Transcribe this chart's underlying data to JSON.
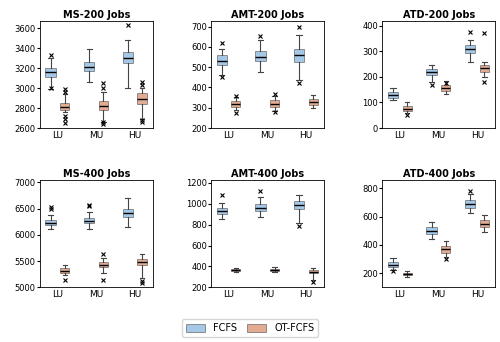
{
  "titles": [
    "MS-200 Jobs",
    "AMT-200 Jobs",
    "ATD-200 Jobs",
    "MS-400 Jobs",
    "AMT-400 Jobs",
    "ATD-400 Jobs"
  ],
  "categories": [
    "LU",
    "MU",
    "HU"
  ],
  "fcfs_color": "#5B9BD5",
  "otfcfs_color": "#CD6839",
  "plots": [
    {
      "title": "MS-200 Jobs",
      "ylim": [
        2600,
        3680
      ],
      "yticks": [
        2600,
        2800,
        3000,
        3200,
        3400,
        3600
      ],
      "fcfs": {
        "LU": {
          "whislo": 2995,
          "q1": 3110,
          "med": 3160,
          "q3": 3205,
          "whishi": 3305,
          "fliers": [
            3000,
            3330
          ]
        },
        "MU": {
          "whislo": 3060,
          "q1": 3175,
          "med": 3215,
          "q3": 3265,
          "whishi": 3390,
          "fliers": []
        },
        "HU": {
          "whislo": 3005,
          "q1": 3250,
          "med": 3300,
          "q3": 3360,
          "whishi": 3480,
          "fliers": [
            3640
          ]
        }
      },
      "otfcfs": {
        "LU": {
          "whislo": 2760,
          "q1": 2780,
          "med": 2810,
          "q3": 2855,
          "whishi": 2940,
          "fliers": [
            2650,
            2690,
            2720,
            2960,
            2990
          ]
        },
        "MU": {
          "whislo": 2660,
          "q1": 2785,
          "med": 2820,
          "q3": 2870,
          "whishi": 2960,
          "fliers": [
            2640,
            2660,
            3000,
            3050
          ]
        },
        "HU": {
          "whislo": 2690,
          "q1": 2845,
          "med": 2890,
          "q3": 2950,
          "whishi": 3000,
          "fliers": [
            2660,
            2680,
            3030,
            3060
          ]
        }
      }
    },
    {
      "title": "AMT-200 Jobs",
      "ylim": [
        200,
        730
      ],
      "yticks": [
        200,
        300,
        400,
        500,
        600,
        700
      ],
      "fcfs": {
        "LU": {
          "whislo": 460,
          "q1": 510,
          "med": 533,
          "q3": 560,
          "whishi": 590,
          "fliers": [
            450,
            620
          ]
        },
        "MU": {
          "whislo": 475,
          "q1": 530,
          "med": 550,
          "q3": 578,
          "whishi": 635,
          "fliers": [
            655
          ]
        },
        "HU": {
          "whislo": 435,
          "q1": 528,
          "med": 560,
          "q3": 588,
          "whishi": 660,
          "fliers": [
            420,
            700
          ]
        }
      },
      "otfcfs": {
        "LU": {
          "whislo": 290,
          "q1": 305,
          "med": 318,
          "q3": 332,
          "whishi": 355,
          "fliers": [
            275,
            360
          ]
        },
        "MU": {
          "whislo": 285,
          "q1": 305,
          "med": 320,
          "q3": 337,
          "whishi": 360,
          "fliers": [
            280,
            368
          ]
        },
        "HU": {
          "whislo": 298,
          "q1": 315,
          "med": 328,
          "q3": 345,
          "whishi": 365,
          "fliers": []
        }
      }
    },
    {
      "title": "ATD-200 Jobs",
      "ylim": [
        0,
        420
      ],
      "yticks": [
        0,
        100,
        200,
        300,
        400
      ],
      "fcfs": {
        "LU": {
          "whislo": 108,
          "q1": 118,
          "med": 128,
          "q3": 140,
          "whishi": 155,
          "fliers": []
        },
        "MU": {
          "whislo": 178,
          "q1": 207,
          "med": 218,
          "q3": 230,
          "whishi": 248,
          "fliers": [
            170
          ]
        },
        "HU": {
          "whislo": 258,
          "q1": 295,
          "med": 308,
          "q3": 325,
          "whishi": 345,
          "fliers": [
            375
          ]
        }
      },
      "otfcfs": {
        "LU": {
          "whislo": 58,
          "q1": 68,
          "med": 76,
          "q3": 85,
          "whishi": 100,
          "fliers": [
            50
          ]
        },
        "MU": {
          "whislo": 133,
          "q1": 145,
          "med": 155,
          "q3": 168,
          "whishi": 185,
          "fliers": [
            175
          ]
        },
        "HU": {
          "whislo": 200,
          "q1": 220,
          "med": 233,
          "q3": 245,
          "whishi": 258,
          "fliers": [
            180,
            370
          ]
        }
      }
    },
    {
      "title": "MS-400 Jobs",
      "ylim": [
        5000,
        7050
      ],
      "yticks": [
        5000,
        5500,
        6000,
        6500,
        7000
      ],
      "fcfs": {
        "LU": {
          "whislo": 6105,
          "q1": 6178,
          "med": 6218,
          "q3": 6278,
          "whishi": 6385,
          "fliers": [
            6490,
            6535
          ]
        },
        "MU": {
          "whislo": 6120,
          "q1": 6228,
          "med": 6265,
          "q3": 6320,
          "whishi": 6430,
          "fliers": [
            6545,
            6575
          ]
        },
        "HU": {
          "whislo": 6158,
          "q1": 6340,
          "med": 6408,
          "q3": 6490,
          "whishi": 6700,
          "fliers": []
        }
      },
      "otfcfs": {
        "LU": {
          "whislo": 5230,
          "q1": 5280,
          "med": 5318,
          "q3": 5360,
          "whishi": 5430,
          "fliers": [
            5130
          ]
        },
        "MU": {
          "whislo": 5265,
          "q1": 5388,
          "med": 5430,
          "q3": 5480,
          "whishi": 5555,
          "fliers": [
            5130,
            5640
          ]
        },
        "HU": {
          "whislo": 5178,
          "q1": 5430,
          "med": 5490,
          "q3": 5548,
          "whishi": 5638,
          "fliers": [
            5088,
            5115
          ]
        }
      }
    },
    {
      "title": "AMT-400 Jobs",
      "ylim": [
        200,
        1230
      ],
      "yticks": [
        200,
        400,
        600,
        800,
        1000,
        1200
      ],
      "fcfs": {
        "LU": {
          "whislo": 855,
          "q1": 900,
          "med": 930,
          "q3": 962,
          "whishi": 1010,
          "fliers": [
            1080
          ]
        },
        "MU": {
          "whislo": 870,
          "q1": 935,
          "med": 960,
          "q3": 1002,
          "whishi": 1065,
          "fliers": [
            1120
          ]
        },
        "HU": {
          "whislo": 820,
          "q1": 950,
          "med": 985,
          "q3": 1028,
          "whishi": 1088,
          "fliers": [
            790
          ]
        }
      },
      "otfcfs": {
        "LU": {
          "whislo": 342,
          "q1": 355,
          "med": 362,
          "q3": 372,
          "whishi": 385,
          "fliers": []
        },
        "MU": {
          "whislo": 345,
          "q1": 358,
          "med": 366,
          "q3": 377,
          "whishi": 390,
          "fliers": []
        },
        "HU": {
          "whislo": 270,
          "q1": 340,
          "med": 350,
          "q3": 362,
          "whishi": 382,
          "fliers": [
            252
          ]
        }
      }
    },
    {
      "title": "ATD-400 Jobs",
      "ylim": [
        100,
        860
      ],
      "yticks": [
        200,
        400,
        600,
        800
      ],
      "fcfs": {
        "LU": {
          "whislo": 222,
          "q1": 240,
          "med": 258,
          "q3": 278,
          "whishi": 308,
          "fliers": [
            215
          ]
        },
        "MU": {
          "whislo": 442,
          "q1": 475,
          "med": 500,
          "q3": 525,
          "whishi": 558,
          "fliers": []
        },
        "HU": {
          "whislo": 622,
          "q1": 660,
          "med": 690,
          "q3": 720,
          "whishi": 758,
          "fliers": [
            782
          ]
        }
      },
      "otfcfs": {
        "LU": {
          "whislo": 176,
          "q1": 185,
          "med": 194,
          "q3": 204,
          "whishi": 214,
          "fliers": []
        },
        "MU": {
          "whislo": 312,
          "q1": 345,
          "med": 368,
          "q3": 393,
          "whishi": 428,
          "fliers": [
            302
          ]
        },
        "HU": {
          "whislo": 492,
          "q1": 525,
          "med": 548,
          "q3": 572,
          "whishi": 608,
          "fliers": []
        }
      }
    }
  ]
}
